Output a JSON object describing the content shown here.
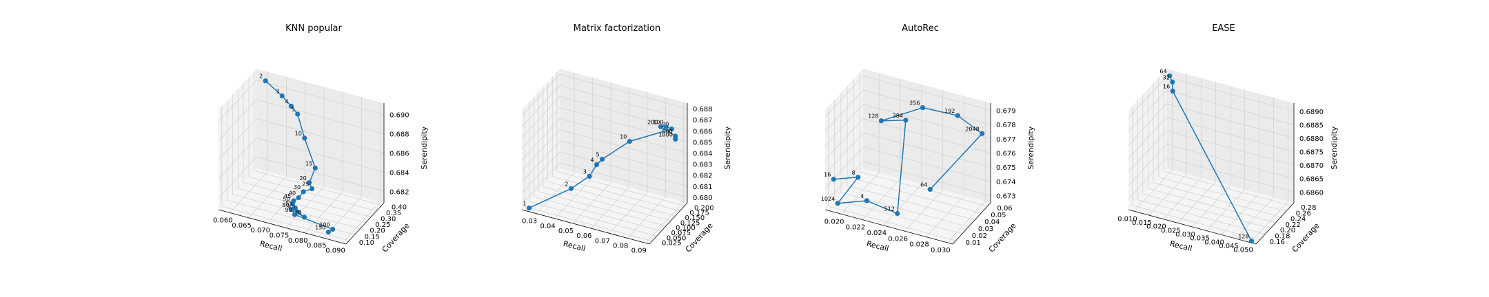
{
  "colors": {
    "series": "#1f77b4",
    "pane_back": "#ebebeb",
    "pane_side": "#f2f2f2",
    "pane_floor": "#f5f5f5",
    "grid": "#d3d3d3",
    "axis": "#000000"
  },
  "chart_data": [
    {
      "type": "scatter",
      "title": "KNN popular",
      "xlabel": "Recall",
      "ylabel": "Coverage",
      "zlabel": "Serendipity",
      "xticks": [
        "0.060",
        "0.065",
        "0.070",
        "0.075",
        "0.080",
        "0.085",
        "0.090"
      ],
      "yticks": [
        "0.10",
        "0.15",
        "0.20",
        "0.25",
        "0.30",
        "0.35",
        "0.40"
      ],
      "zticks": [
        "0.682",
        "0.684",
        "0.686",
        "0.688",
        "0.690"
      ],
      "xlim": [
        0.057,
        0.091
      ],
      "ylim": [
        0.07,
        0.42
      ],
      "zlim": [
        0.6808,
        0.6912
      ],
      "grid": true,
      "points": [
        {
          "label": "2",
          "x": 0.06,
          "y": 0.4,
          "z": 0.6905
        },
        {
          "label": "3",
          "x": 0.065,
          "y": 0.38,
          "z": 0.6897
        },
        {
          "label": "4",
          "x": 0.068,
          "y": 0.36,
          "z": 0.6892
        },
        {
          "label": "5",
          "x": 0.07,
          "y": 0.35,
          "z": 0.6887
        },
        {
          "label": "10",
          "x": 0.073,
          "y": 0.31,
          "z": 0.687
        },
        {
          "label": "15",
          "x": 0.077,
          "y": 0.27,
          "z": 0.6848
        },
        {
          "label": "20",
          "x": 0.076,
          "y": 0.25,
          "z": 0.6834
        },
        {
          "label": "25",
          "x": 0.077,
          "y": 0.24,
          "z": 0.683
        },
        {
          "label": "30",
          "x": 0.075,
          "y": 0.23,
          "z": 0.6826
        },
        {
          "label": "40",
          "x": 0.074,
          "y": 0.22,
          "z": 0.682
        },
        {
          "label": "45",
          "x": 0.073,
          "y": 0.21,
          "z": 0.6817
        },
        {
          "label": "50",
          "x": 0.073,
          "y": 0.2,
          "z": 0.6815
        },
        {
          "label": "55",
          "x": 0.074,
          "y": 0.19,
          "z": 0.6813
        },
        {
          "label": "60",
          "x": 0.075,
          "y": 0.18,
          "z": 0.6811
        },
        {
          "label": "70",
          "x": 0.077,
          "y": 0.17,
          "z": 0.6809
        },
        {
          "label": "80",
          "x": 0.074,
          "y": 0.16,
          "z": 0.6815
        },
        {
          "label": "90",
          "x": 0.075,
          "y": 0.15,
          "z": 0.6812
        },
        {
          "label": "100",
          "x": 0.086,
          "y": 0.12,
          "z": 0.6812
        },
        {
          "label": "150",
          "x": 0.086,
          "y": 0.08,
          "z": 0.6814
        }
      ]
    },
    {
      "type": "scatter",
      "title": "Matrix factorization",
      "xlabel": "Recall",
      "ylabel": "Coverage",
      "zlabel": "Serendipity",
      "xticks": [
        "0.03",
        "0.04",
        "0.05",
        "0.06",
        "0.07",
        "0.08",
        "0.09"
      ],
      "yticks": [
        "0.025",
        "0.050",
        "0.075",
        "0.100",
        "0.125",
        "0.150",
        "0.175",
        "0.200"
      ],
      "zticks": [
        "0.680",
        "0.681",
        "0.682",
        "0.683",
        "0.684",
        "0.685",
        "0.686",
        "0.687",
        "0.688"
      ],
      "xlim": [
        0.022,
        0.092
      ],
      "ylim": [
        0.01,
        0.215
      ],
      "zlim": [
        0.6795,
        0.6885
      ],
      "grid": true,
      "points": [
        {
          "label": "1",
          "x": 0.025,
          "y": 0.02,
          "z": 0.6796
        },
        {
          "label": "2",
          "x": 0.045,
          "y": 0.05,
          "z": 0.6817
        },
        {
          "label": "3",
          "x": 0.053,
          "y": 0.07,
          "z": 0.6828
        },
        {
          "label": "4",
          "x": 0.056,
          "y": 0.08,
          "z": 0.6838
        },
        {
          "label": "5",
          "x": 0.058,
          "y": 0.09,
          "z": 0.6842
        },
        {
          "label": "10",
          "x": 0.07,
          "y": 0.12,
          "z": 0.6858
        },
        {
          "label": "20",
          "x": 0.088,
          "y": 0.17,
          "z": 0.6868
        },
        {
          "label": "100",
          "x": 0.086,
          "y": 0.16,
          "z": 0.6871
        },
        {
          "label": "200",
          "x": 0.084,
          "y": 0.15,
          "z": 0.6872
        },
        {
          "label": "500",
          "x": 0.088,
          "y": 0.19,
          "z": 0.6858
        },
        {
          "label": "1000",
          "x": 0.087,
          "y": 0.2,
          "z": 0.6853
        }
      ]
    },
    {
      "type": "scatter",
      "title": "AutoRec",
      "xlabel": "Recall",
      "ylabel": "Coverage",
      "zlabel": "Serendipity",
      "xticks": [
        "0.020",
        "0.022",
        "0.024",
        "0.026",
        "0.028",
        "0.030"
      ],
      "yticks": [
        "0.01",
        "0.02",
        "0.03",
        "0.04",
        "0.05",
        "0.06"
      ],
      "zticks": [
        "0.673",
        "0.674",
        "0.675",
        "0.676",
        "0.677",
        "0.678",
        "0.679"
      ],
      "xlim": [
        0.0185,
        0.0305
      ],
      "ylim": [
        0.005,
        0.065
      ],
      "zlim": [
        0.6725,
        0.6795
      ],
      "grid": true,
      "points": [
        {
          "label": "16",
          "x": 0.019,
          "y": 0.01,
          "z": 0.6745
        },
        {
          "label": "8",
          "x": 0.021,
          "y": 0.015,
          "z": 0.6748
        },
        {
          "label": "1024",
          "x": 0.0195,
          "y": 0.008,
          "z": 0.673
        },
        {
          "label": "4",
          "x": 0.022,
          "y": 0.012,
          "z": 0.6735
        },
        {
          "label": "512",
          "x": 0.025,
          "y": 0.01,
          "z": 0.6733
        },
        {
          "label": "384",
          "x": 0.024,
          "y": 0.04,
          "z": 0.6782
        },
        {
          "label": "128",
          "x": 0.022,
          "y": 0.035,
          "z": 0.678
        },
        {
          "label": "256",
          "x": 0.025,
          "y": 0.05,
          "z": 0.6788
        },
        {
          "label": "192",
          "x": 0.028,
          "y": 0.055,
          "z": 0.6786
        },
        {
          "label": "2048",
          "x": 0.03,
          "y": 0.06,
          "z": 0.6775
        },
        {
          "label": "64",
          "x": 0.026,
          "y": 0.045,
          "z": 0.6735
        }
      ]
    },
    {
      "type": "scatter",
      "title": "EASE",
      "xlabel": "Recall",
      "ylabel": "Coverage",
      "zlabel": "Serendipity",
      "xticks": [
        "0.010",
        "0.015",
        "0.020",
        "0.025",
        "0.030",
        "0.035",
        "0.040",
        "0.045",
        "0.050"
      ],
      "yticks": [
        "0.16",
        "0.18",
        "0.20",
        "0.22",
        "0.24",
        "0.26",
        "0.28"
      ],
      "zticks": [
        "0.6860",
        "0.6865",
        "0.6870",
        "0.6875",
        "0.6880",
        "0.6885",
        "0.6890"
      ],
      "xlim": [
        0.008,
        0.052
      ],
      "ylim": [
        0.145,
        0.29
      ],
      "zlim": [
        0.6856,
        0.6893
      ],
      "grid": true,
      "points": [
        {
          "label": "64",
          "x": 0.01,
          "y": 0.28,
          "z": 0.6892
        },
        {
          "label": "32",
          "x": 0.011,
          "y": 0.28,
          "z": 0.689
        },
        {
          "label": "16",
          "x": 0.012,
          "y": 0.27,
          "z": 0.6888
        },
        {
          "label": "128",
          "x": 0.05,
          "y": 0.15,
          "z": 0.6856
        }
      ]
    }
  ]
}
